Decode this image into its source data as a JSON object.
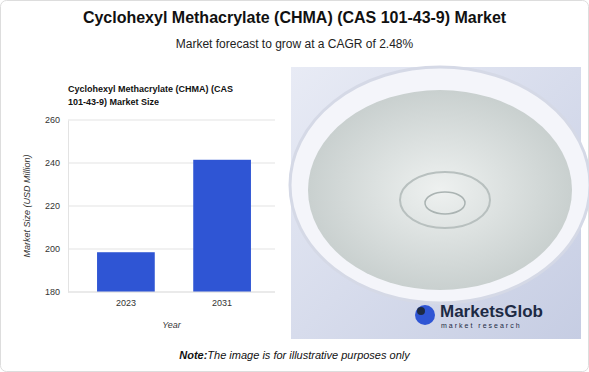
{
  "page": {
    "title": "Cyclohexyl Methacrylate (CHMA) (CAS 101-43-9) Market",
    "subtitle": "Market forecast to grow at a CAGR of 2.48%",
    "note_label": "Note:",
    "note": "The image is for illustrative purposes only",
    "logo": "MarketsGlob",
    "logo_tagline": "market research"
  },
  "chart_data": {
    "type": "bar",
    "title": "Cyclohexyl Methacrylate (CHMA) (CAS 101-43-9) Market Size",
    "x_label": "Year",
    "y_label": "Market Size (USD Million)",
    "categories": [
      "2023",
      "2031"
    ],
    "values": [
      198.5,
      241.5
    ],
    "color": "#2f55d4",
    "ylim": [
      180,
      260
    ],
    "yticks": [
      180,
      200,
      220,
      240,
      260
    ],
    "grid": true
  }
}
